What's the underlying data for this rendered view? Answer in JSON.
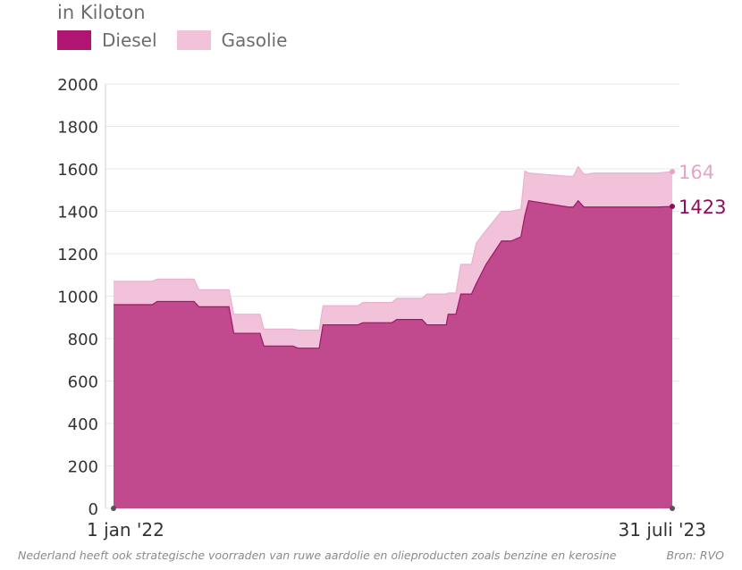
{
  "subtitle": "in Kiloton",
  "footnote": "Nederland heeft ook strategische voorraden van ruwe aardolie en olieproducten zoals benzine en kerosine",
  "source": "Bron: RVO",
  "colors": {
    "diesel": "#c04a8d",
    "gasolie": "#f1c2da",
    "diesel_swatch": "#b01572",
    "diesel_label": "#8c0f5b",
    "gasolie_label": "#e3a6c6"
  },
  "chart_data": {
    "type": "area",
    "stacked": true,
    "legend": [
      "Diesel",
      "Gasolie"
    ],
    "legend_position": "top-left",
    "x_tick_labels": [
      "1 jan '22",
      "31 juli '23"
    ],
    "y_ticks": [
      0,
      200,
      400,
      600,
      800,
      1000,
      1200,
      1400,
      1600,
      1800,
      2000
    ],
    "ylim": [
      0,
      2000
    ],
    "grid": true,
    "x_start": "2022-01-01",
    "x_end": "2023-07-31",
    "series": [
      {
        "name": "Diesel",
        "x": [
          "2022-01-01",
          "2022-02-10",
          "2022-02-15",
          "2022-03-25",
          "2022-03-30",
          "2022-04-30",
          "2022-05-05",
          "2022-06-01",
          "2022-06-05",
          "2022-07-05",
          "2022-07-10",
          "2022-08-01",
          "2022-08-05",
          "2022-09-10",
          "2022-09-15",
          "2022-10-15",
          "2022-10-20",
          "2022-11-15",
          "2022-11-20",
          "2022-12-10",
          "2022-12-12",
          "2022-12-20",
          "2022-12-25",
          "2023-01-05",
          "2023-01-10",
          "2023-01-20",
          "2023-02-05",
          "2023-02-15",
          "2023-02-25",
          "2023-03-01",
          "2023-03-05",
          "2023-04-15",
          "2023-04-20",
          "2023-04-25",
          "2023-05-01",
          "2023-05-05",
          "2023-05-10",
          "2023-06-10",
          "2023-07-15",
          "2023-07-31"
        ],
        "values": [
          960,
          960,
          975,
          975,
          950,
          950,
          825,
          825,
          765,
          765,
          755,
          755,
          865,
          865,
          875,
          875,
          890,
          890,
          865,
          865,
          915,
          915,
          1010,
          1010,
          1060,
          1150,
          1260,
          1260,
          1280,
          1380,
          1450,
          1420,
          1420,
          1450,
          1420,
          1420,
          1420,
          1420,
          1420,
          1423
        ]
      },
      {
        "name": "Gasolie",
        "x": [
          "2022-01-01",
          "2022-02-10",
          "2022-02-15",
          "2022-03-25",
          "2022-03-30",
          "2022-04-30",
          "2022-05-05",
          "2022-06-01",
          "2022-06-05",
          "2022-07-05",
          "2022-07-10",
          "2022-08-01",
          "2022-08-05",
          "2022-09-10",
          "2022-09-15",
          "2022-10-15",
          "2022-10-20",
          "2022-11-15",
          "2022-11-20",
          "2022-12-10",
          "2022-12-12",
          "2022-12-20",
          "2022-12-25",
          "2023-01-05",
          "2023-01-10",
          "2023-01-20",
          "2023-02-05",
          "2023-02-15",
          "2023-02-25",
          "2023-03-01",
          "2023-03-05",
          "2023-04-15",
          "2023-04-20",
          "2023-04-25",
          "2023-05-01",
          "2023-05-05",
          "2023-05-10",
          "2023-06-10",
          "2023-07-15",
          "2023-07-31"
        ],
        "values": [
          110,
          110,
          105,
          105,
          80,
          80,
          90,
          90,
          80,
          80,
          85,
          85,
          90,
          90,
          95,
          95,
          100,
          100,
          145,
          145,
          100,
          100,
          140,
          140,
          190,
          160,
          140,
          140,
          130,
          210,
          130,
          145,
          145,
          160,
          155,
          155,
          160,
          160,
          160,
          164
        ]
      }
    ],
    "end_labels": [
      "164",
      "1423"
    ]
  }
}
